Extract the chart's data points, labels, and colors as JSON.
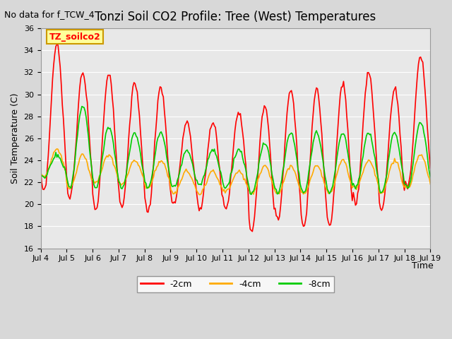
{
  "title": "Tonzi Soil CO2 Profile: Tree (West) Temperatures",
  "subtitle": "No data for f_TCW_4",
  "ylabel": "Soil Temperature (C)",
  "xlabel": "Time",
  "legend_label": "TZ_soilco2",
  "ylim": [
    16,
    36
  ],
  "yticks": [
    16,
    18,
    20,
    22,
    24,
    26,
    28,
    30,
    32,
    34,
    36
  ],
  "xtick_labels": [
    "Jul 4",
    "Jul 5",
    "Jul 6",
    "Jul 7",
    "Jul 8",
    "Jul 9",
    "Jul 10",
    "Jul 11",
    "Jul 12",
    "Jul 13",
    "Jul 14",
    "Jul 15",
    "Jul 16",
    "Jul 17",
    "Jul 18",
    "Jul 19"
  ],
  "series": {
    "-2cm": {
      "color": "#ff0000",
      "linewidth": 1.2
    },
    "-4cm": {
      "color": "#ffaa00",
      "linewidth": 1.2
    },
    "-8cm": {
      "color": "#00cc00",
      "linewidth": 1.2
    }
  },
  "bg_color": "#e8e8e8",
  "plot_bg_color": "#e8e8e8",
  "legend_box_color": "#ffff99",
  "legend_box_edge": "#cc9900"
}
